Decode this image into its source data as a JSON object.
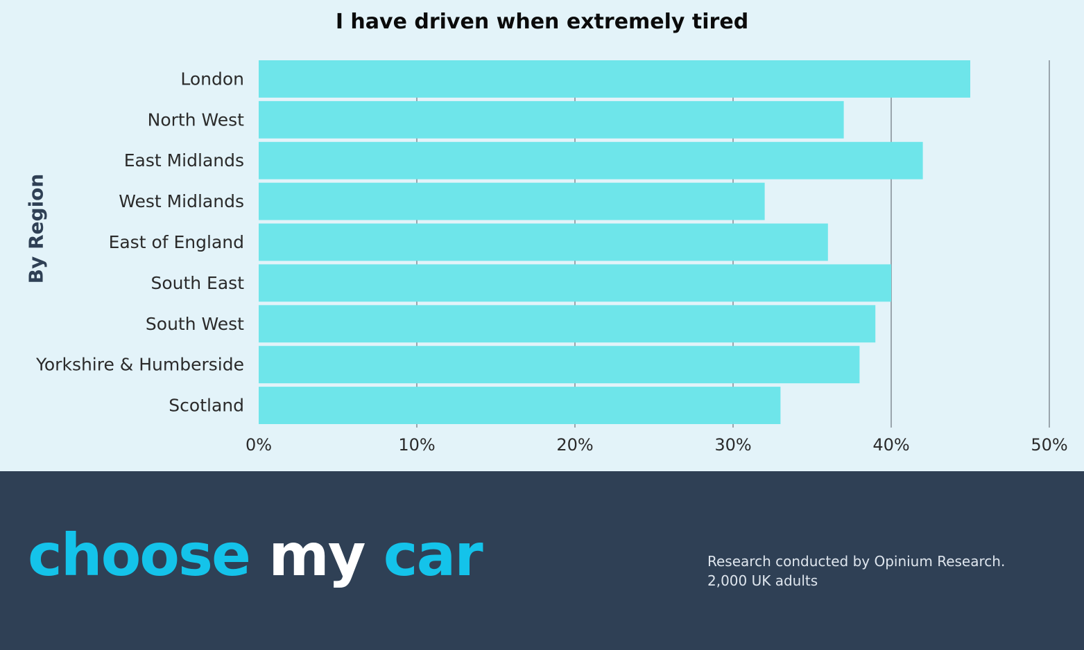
{
  "chart_data": {
    "type": "bar",
    "orientation": "horizontal",
    "title": "I have driven when extremely tired",
    "ylabel": "By Region",
    "xlabel": "",
    "categories": [
      "London",
      "North West",
      "East Midlands",
      "West Midlands",
      "East of England",
      "South East",
      "South West",
      "Yorkshire & Humberside",
      "Scotland"
    ],
    "values": [
      45,
      37,
      42,
      32,
      36,
      40,
      39,
      38,
      33
    ],
    "xlim": [
      0,
      50
    ],
    "ticks": [
      0,
      10,
      20,
      30,
      40,
      50
    ],
    "tick_labels": [
      "0%",
      "10%",
      "20%",
      "30%",
      "40%",
      "50%"
    ],
    "grid": "vertical",
    "legend": "none",
    "colors": {
      "bar": "#6ee5ea",
      "grid": "#9aa5ad"
    }
  },
  "footer": {
    "logo": {
      "word1": "choose",
      "word2": "my",
      "word3": "car"
    },
    "source_line1": "Research conducted by Opinium Research.",
    "source_line2": "2,000 UK adults"
  }
}
